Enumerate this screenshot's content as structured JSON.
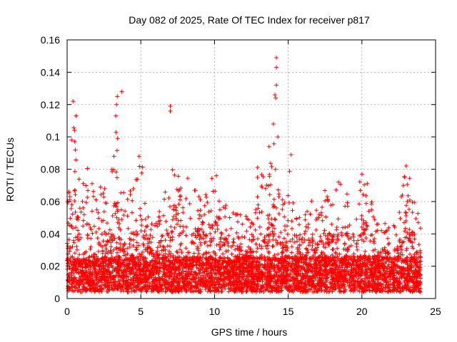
{
  "chart_data": {
    "type": "scatter",
    "title": "Day 082 of 2025, Rate Of TEC Index for receiver p817",
    "xlabel": "GPS time / hours",
    "ylabel": "ROTI / TECUs",
    "xlim": [
      0,
      25
    ],
    "ylim": [
      0,
      0.16
    ],
    "xticks": [
      0,
      5,
      10,
      15,
      20,
      25
    ],
    "yticks": [
      0,
      0.02,
      0.04,
      0.06,
      0.08,
      0.1,
      0.12,
      0.14,
      0.16
    ],
    "xtick_labels": [
      "0",
      "5",
      "10",
      "15",
      "20",
      "25"
    ],
    "ytick_labels": [
      "0",
      "0.02",
      "0.04",
      "0.06",
      "0.08",
      "0.1",
      "0.12",
      "0.14",
      "0.16"
    ],
    "grid": true,
    "marker": "plus",
    "marker_color": "#ff0000",
    "x_range_data": [
      0,
      24
    ],
    "envelope": [
      {
        "x": 0.0,
        "y": 0.05
      },
      {
        "x": 0.3,
        "y": 0.1
      },
      {
        "x": 0.5,
        "y": 0.115
      },
      {
        "x": 0.8,
        "y": 0.09
      },
      {
        "x": 1.2,
        "y": 0.07
      },
      {
        "x": 1.5,
        "y": 0.085
      },
      {
        "x": 2.0,
        "y": 0.06
      },
      {
        "x": 2.2,
        "y": 0.082
      },
      {
        "x": 2.8,
        "y": 0.06
      },
      {
        "x": 3.3,
        "y": 0.11
      },
      {
        "x": 3.6,
        "y": 0.075
      },
      {
        "x": 4.0,
        "y": 0.06
      },
      {
        "x": 4.5,
        "y": 0.065
      },
      {
        "x": 5.0,
        "y": 0.09
      },
      {
        "x": 5.5,
        "y": 0.05
      },
      {
        "x": 6.0,
        "y": 0.045
      },
      {
        "x": 6.5,
        "y": 0.06
      },
      {
        "x": 7.2,
        "y": 0.08
      },
      {
        "x": 7.8,
        "y": 0.075
      },
      {
        "x": 8.5,
        "y": 0.07
      },
      {
        "x": 9.0,
        "y": 0.065
      },
      {
        "x": 9.5,
        "y": 0.06
      },
      {
        "x": 10.0,
        "y": 0.08
      },
      {
        "x": 10.5,
        "y": 0.06
      },
      {
        "x": 11.0,
        "y": 0.055
      },
      {
        "x": 11.5,
        "y": 0.05
      },
      {
        "x": 12.0,
        "y": 0.05
      },
      {
        "x": 12.5,
        "y": 0.045
      },
      {
        "x": 13.0,
        "y": 0.085
      },
      {
        "x": 13.5,
        "y": 0.07
      },
      {
        "x": 14.0,
        "y": 0.095
      },
      {
        "x": 14.5,
        "y": 0.05
      },
      {
        "x": 15.0,
        "y": 0.085
      },
      {
        "x": 15.5,
        "y": 0.055
      },
      {
        "x": 16.0,
        "y": 0.045
      },
      {
        "x": 16.5,
        "y": 0.058
      },
      {
        "x": 17.0,
        "y": 0.05
      },
      {
        "x": 17.5,
        "y": 0.065
      },
      {
        "x": 18.0,
        "y": 0.06
      },
      {
        "x": 18.5,
        "y": 0.07
      },
      {
        "x": 19.0,
        "y": 0.065
      },
      {
        "x": 19.5,
        "y": 0.06
      },
      {
        "x": 20.0,
        "y": 0.075
      },
      {
        "x": 20.5,
        "y": 0.07
      },
      {
        "x": 21.0,
        "y": 0.05
      },
      {
        "x": 21.5,
        "y": 0.045
      },
      {
        "x": 22.0,
        "y": 0.04
      },
      {
        "x": 22.5,
        "y": 0.05
      },
      {
        "x": 23.0,
        "y": 0.08
      },
      {
        "x": 23.5,
        "y": 0.06
      },
      {
        "x": 24.0,
        "y": 0.05
      }
    ],
    "outliers": [
      {
        "x": 0.4,
        "y": 0.122
      },
      {
        "x": 0.6,
        "y": 0.113
      },
      {
        "x": 0.5,
        "y": 0.104
      },
      {
        "x": 0.3,
        "y": 0.098
      },
      {
        "x": 3.4,
        "y": 0.125
      },
      {
        "x": 3.35,
        "y": 0.12
      },
      {
        "x": 3.7,
        "y": 0.128
      },
      {
        "x": 3.3,
        "y": 0.113
      },
      {
        "x": 7.0,
        "y": 0.119
      },
      {
        "x": 7.0,
        "y": 0.116
      },
      {
        "x": 14.2,
        "y": 0.149
      },
      {
        "x": 14.2,
        "y": 0.143
      },
      {
        "x": 14.2,
        "y": 0.132
      },
      {
        "x": 14.1,
        "y": 0.126
      },
      {
        "x": 14.15,
        "y": 0.124
      },
      {
        "x": 14.0,
        "y": 0.108
      },
      {
        "x": 14.3,
        "y": 0.1
      },
      {
        "x": 15.2,
        "y": 0.089
      },
      {
        "x": 13.7,
        "y": 0.094
      }
    ]
  }
}
